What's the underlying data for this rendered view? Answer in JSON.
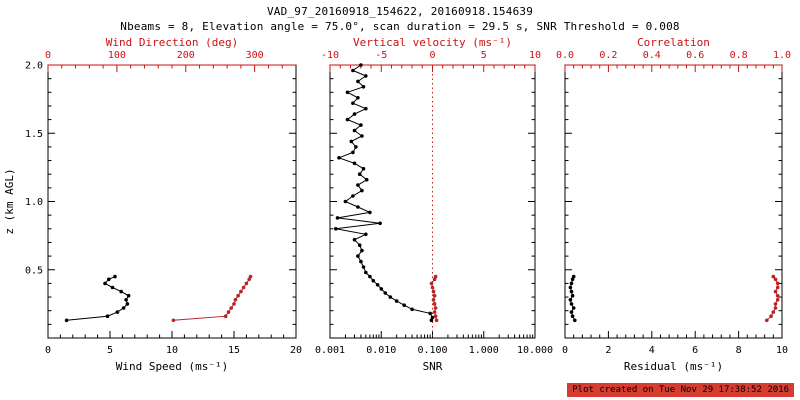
{
  "header": {
    "title": "VAD_97_20160918_154622, 20160918.154639",
    "subtitle": "Nbeams = 8, Elevation angle = 75.0°, scan duration = 29.5 s, SNR Threshold = 0.008"
  },
  "footer": {
    "created": "Plot created on Tue Nov 29 17:38:52 2016"
  },
  "colors": {
    "axis": "#000000",
    "secondary_axis": "#cc1111",
    "series_black": "#000000",
    "series_red": "#bb2222",
    "timestamp_bg": "#d63c30",
    "timestamp_text": "#000000"
  },
  "chart_data": [
    {
      "name": "wind-panel",
      "type": "line",
      "ylabel": "z (km AGL)",
      "ylim": [
        0,
        2.0
      ],
      "yticks": [
        0.5,
        1.0,
        1.5,
        2.0
      ],
      "ytick_labels": [
        "0.5",
        "1.0",
        "1.5",
        "2.0"
      ],
      "bottom_axis": {
        "label": "Wind Speed (ms⁻¹)",
        "lim": [
          0,
          20
        ],
        "ticks": [
          0,
          5,
          10,
          15,
          20
        ],
        "tick_labels": [
          "0",
          "5",
          "10",
          "15",
          "20"
        ],
        "color": "#000000"
      },
      "top_axis": {
        "label": "Wind Direction (deg)",
        "lim": [
          0,
          360
        ],
        "ticks": [
          0,
          100,
          200,
          300
        ],
        "tick_labels": [
          "0",
          "100",
          "200",
          "300"
        ],
        "color": "#cc1111"
      },
      "series": [
        {
          "name": "wind-speed-series",
          "axis": "bottom",
          "color": "#000000",
          "points": [
            [
              0.13,
              1.5
            ],
            [
              0.16,
              4.8
            ],
            [
              0.19,
              5.6
            ],
            [
              0.22,
              6.1
            ],
            [
              0.25,
              6.4
            ],
            [
              0.28,
              6.3
            ],
            [
              0.31,
              6.5
            ],
            [
              0.34,
              5.9
            ],
            [
              0.37,
              5.2
            ],
            [
              0.4,
              4.6
            ],
            [
              0.43,
              4.9
            ],
            [
              0.45,
              5.4
            ]
          ]
        },
        {
          "name": "wind-direction-series",
          "axis": "top",
          "color": "#bb2222",
          "points": [
            [
              0.13,
              182
            ],
            [
              0.16,
              258
            ],
            [
              0.19,
              262
            ],
            [
              0.22,
              266
            ],
            [
              0.25,
              270
            ],
            [
              0.28,
              272
            ],
            [
              0.31,
              276
            ],
            [
              0.34,
              280
            ],
            [
              0.37,
              284
            ],
            [
              0.4,
              288
            ],
            [
              0.43,
              292
            ],
            [
              0.45,
              294
            ]
          ]
        }
      ]
    },
    {
      "name": "snr-panel",
      "type": "line",
      "ylim": [
        0,
        2.0
      ],
      "yticks": [
        0.5,
        1.0,
        1.5,
        2.0
      ],
      "bottom_axis": {
        "label": "SNR",
        "lim": [
          0.001,
          10.0
        ],
        "log": true,
        "ticks": [
          0.001,
          0.01,
          0.1,
          1.0,
          10.0
        ],
        "tick_labels": [
          "0.001",
          "0.010",
          "0.100",
          "1.000",
          "10.000"
        ],
        "color": "#000000"
      },
      "top_axis": {
        "label": "Vertical velocity (ms⁻¹)",
        "lim": [
          -10,
          10
        ],
        "ticks": [
          -10,
          -5,
          0,
          5,
          10
        ],
        "tick_labels": [
          "-10",
          "-5",
          "0",
          "5",
          "10"
        ],
        "color": "#cc1111"
      },
      "reference_line": {
        "axis": "top",
        "value": 0,
        "color": "#bb2222",
        "style": "dotted"
      },
      "series": [
        {
          "name": "snr-series",
          "axis": "bottom",
          "color": "#000000",
          "points": [
            [
              2.0,
              0.004
            ],
            [
              1.96,
              0.0028
            ],
            [
              1.92,
              0.005
            ],
            [
              1.88,
              0.0035
            ],
            [
              1.84,
              0.0045
            ],
            [
              1.8,
              0.0022
            ],
            [
              1.76,
              0.0035
            ],
            [
              1.72,
              0.0028
            ],
            [
              1.68,
              0.005
            ],
            [
              1.64,
              0.003
            ],
            [
              1.6,
              0.0022
            ],
            [
              1.56,
              0.004
            ],
            [
              1.52,
              0.003
            ],
            [
              1.48,
              0.0042
            ],
            [
              1.44,
              0.0026
            ],
            [
              1.4,
              0.0032
            ],
            [
              1.36,
              0.0028
            ],
            [
              1.32,
              0.0015
            ],
            [
              1.28,
              0.003
            ],
            [
              1.24,
              0.0045
            ],
            [
              1.2,
              0.0038
            ],
            [
              1.16,
              0.0052
            ],
            [
              1.12,
              0.0035
            ],
            [
              1.08,
              0.0042
            ],
            [
              1.04,
              0.0028
            ],
            [
              1.0,
              0.002
            ],
            [
              0.96,
              0.0035
            ],
            [
              0.92,
              0.006
            ],
            [
              0.88,
              0.0014
            ],
            [
              0.84,
              0.0095
            ],
            [
              0.8,
              0.0013
            ],
            [
              0.76,
              0.005
            ],
            [
              0.72,
              0.003
            ],
            [
              0.68,
              0.0038
            ],
            [
              0.64,
              0.0042
            ],
            [
              0.6,
              0.0035
            ],
            [
              0.56,
              0.004
            ],
            [
              0.52,
              0.0045
            ],
            [
              0.48,
              0.005
            ],
            [
              0.45,
              0.006
            ],
            [
              0.42,
              0.007
            ],
            [
              0.39,
              0.0085
            ],
            [
              0.36,
              0.01
            ],
            [
              0.33,
              0.012
            ],
            [
              0.3,
              0.015
            ],
            [
              0.27,
              0.02
            ],
            [
              0.24,
              0.028
            ],
            [
              0.21,
              0.04
            ],
            [
              0.18,
              0.09
            ],
            [
              0.15,
              0.1
            ],
            [
              0.13,
              0.095
            ]
          ]
        },
        {
          "name": "vertical-velocity-series",
          "axis": "top",
          "color": "#bb2222",
          "points": [
            [
              0.13,
              0.4
            ],
            [
              0.16,
              0.3
            ],
            [
              0.19,
              0.2
            ],
            [
              0.22,
              0.3
            ],
            [
              0.25,
              0.2
            ],
            [
              0.28,
              0.1
            ],
            [
              0.31,
              0.2
            ],
            [
              0.34,
              0.1
            ],
            [
              0.37,
              0.0
            ],
            [
              0.4,
              -0.1
            ],
            [
              0.43,
              0.2
            ],
            [
              0.45,
              0.3
            ]
          ]
        }
      ]
    },
    {
      "name": "residual-panel",
      "type": "line",
      "ylim": [
        0,
        2.0
      ],
      "yticks": [
        0.5,
        1.0,
        1.5,
        2.0
      ],
      "bottom_axis": {
        "label": "Residual (ms⁻¹)",
        "lim": [
          0,
          10
        ],
        "ticks": [
          0,
          2,
          4,
          6,
          8,
          10
        ],
        "tick_labels": [
          "0",
          "2",
          "4",
          "6",
          "8",
          "10"
        ],
        "color": "#000000"
      },
      "top_axis": {
        "label": "Correlation",
        "lim": [
          0,
          1
        ],
        "ticks": [
          0,
          0.2,
          0.4,
          0.6,
          0.8,
          1.0
        ],
        "tick_labels": [
          "0.0",
          "0.2",
          "0.4",
          "0.6",
          "0.8",
          "1.0"
        ],
        "color": "#cc1111"
      },
      "series": [
        {
          "name": "residual-series",
          "axis": "bottom",
          "color": "#000000",
          "points": [
            [
              0.13,
              0.45
            ],
            [
              0.16,
              0.35
            ],
            [
              0.19,
              0.3
            ],
            [
              0.22,
              0.4
            ],
            [
              0.25,
              0.3
            ],
            [
              0.28,
              0.25
            ],
            [
              0.31,
              0.35
            ],
            [
              0.34,
              0.3
            ],
            [
              0.37,
              0.25
            ],
            [
              0.4,
              0.3
            ],
            [
              0.43,
              0.35
            ],
            [
              0.45,
              0.4
            ]
          ]
        },
        {
          "name": "correlation-series",
          "axis": "top",
          "color": "#bb2222",
          "points": [
            [
              0.13,
              0.93
            ],
            [
              0.16,
              0.95
            ],
            [
              0.19,
              0.96
            ],
            [
              0.22,
              0.97
            ],
            [
              0.25,
              0.97
            ],
            [
              0.28,
              0.98
            ],
            [
              0.31,
              0.98
            ],
            [
              0.34,
              0.97
            ],
            [
              0.37,
              0.98
            ],
            [
              0.4,
              0.98
            ],
            [
              0.43,
              0.97
            ],
            [
              0.45,
              0.96
            ]
          ]
        }
      ]
    }
  ]
}
